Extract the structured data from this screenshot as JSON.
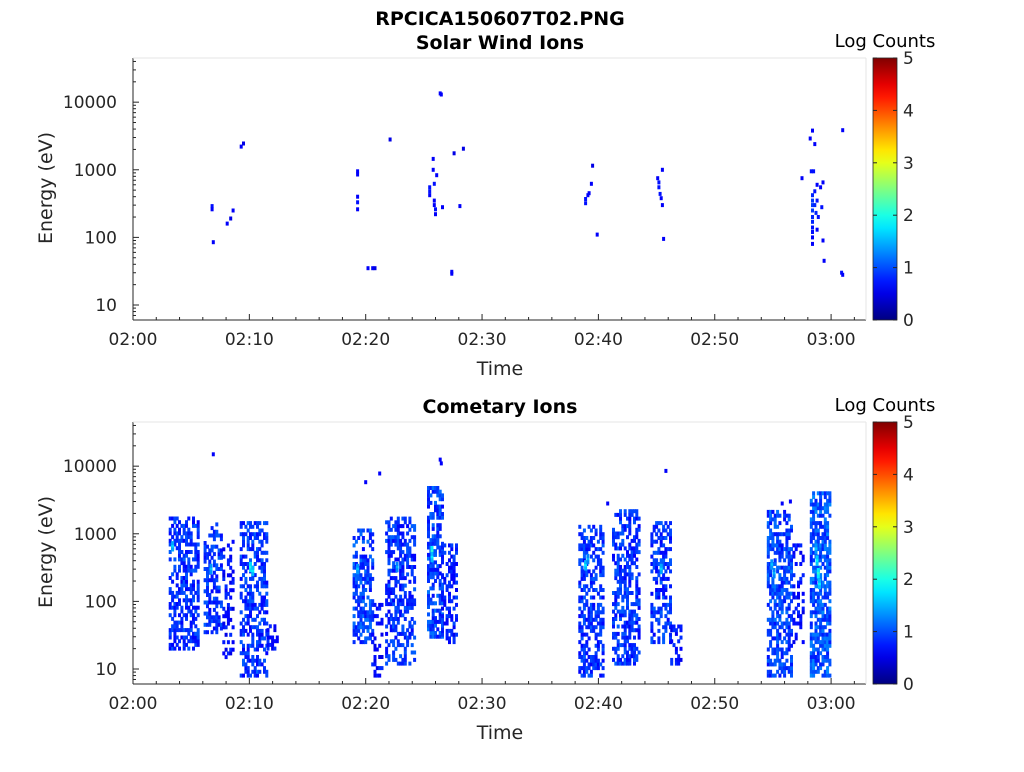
{
  "figure": {
    "title": "RPCICA150607T02.PNG"
  },
  "colors": {
    "axis": "#262626",
    "background": "#ffffff",
    "colormap": "jet"
  },
  "chart_data": [
    {
      "type": "heatmap",
      "title": "Solar Wind Ions",
      "xlabel": "Time",
      "ylabel": "Energy (eV)",
      "x_ticks": [
        "02:00",
        "02:10",
        "02:20",
        "02:30",
        "02:40",
        "02:50",
        "03:00"
      ],
      "x_range_minutes": [
        0,
        63
      ],
      "y_scale": "log",
      "y_ticks": [
        "10",
        "100",
        "1000",
        "10000"
      ],
      "ylim": [
        6,
        45000
      ],
      "grid": false,
      "colorbar": {
        "label": "Log Counts",
        "ticks": [
          "0",
          "1",
          "2",
          "3",
          "4",
          "5"
        ],
        "range": [
          0,
          5
        ]
      },
      "points": [
        {
          "t": 6.8,
          "e": 290,
          "c": 0.7
        },
        {
          "t": 6.8,
          "e": 260,
          "c": 0.6
        },
        {
          "t": 6.9,
          "e": 85,
          "c": 0.6
        },
        {
          "t": 8.1,
          "e": 160,
          "c": 0.6
        },
        {
          "t": 8.4,
          "e": 190,
          "c": 0.5
        },
        {
          "t": 8.6,
          "e": 250,
          "c": 0.6
        },
        {
          "t": 9.3,
          "e": 2200,
          "c": 0.6
        },
        {
          "t": 9.5,
          "e": 2450,
          "c": 0.5
        },
        {
          "t": 19.3,
          "e": 950,
          "c": 0.6
        },
        {
          "t": 19.3,
          "e": 850,
          "c": 0.6
        },
        {
          "t": 19.3,
          "e": 400,
          "c": 0.6
        },
        {
          "t": 19.3,
          "e": 330,
          "c": 0.7
        },
        {
          "t": 19.3,
          "e": 260,
          "c": 0.6
        },
        {
          "t": 20.2,
          "e": 35,
          "c": 0.6
        },
        {
          "t": 20.6,
          "e": 35,
          "c": 0.6
        },
        {
          "t": 20.8,
          "e": 35,
          "c": 0.5
        },
        {
          "t": 22.1,
          "e": 2800,
          "c": 0.5
        },
        {
          "t": 25.5,
          "e": 550,
          "c": 0.7
        },
        {
          "t": 25.5,
          "e": 480,
          "c": 0.7
        },
        {
          "t": 25.5,
          "e": 420,
          "c": 0.6
        },
        {
          "t": 25.8,
          "e": 1450,
          "c": 0.6
        },
        {
          "t": 25.8,
          "e": 1000,
          "c": 0.6
        },
        {
          "t": 25.9,
          "e": 620,
          "c": 0.7
        },
        {
          "t": 25.9,
          "e": 350,
          "c": 0.6
        },
        {
          "t": 25.9,
          "e": 300,
          "c": 0.6
        },
        {
          "t": 26.0,
          "e": 260,
          "c": 0.7
        },
        {
          "t": 26.0,
          "e": 220,
          "c": 0.6
        },
        {
          "t": 26.1,
          "e": 830,
          "c": 0.6
        },
        {
          "t": 26.4,
          "e": 13500,
          "c": 0.6
        },
        {
          "t": 26.5,
          "e": 13000,
          "c": 0.6
        },
        {
          "t": 26.6,
          "e": 280,
          "c": 0.6
        },
        {
          "t": 27.4,
          "e": 31,
          "c": 0.6
        },
        {
          "t": 27.4,
          "e": 29,
          "c": 0.6
        },
        {
          "t": 27.6,
          "e": 1750,
          "c": 0.5
        },
        {
          "t": 28.4,
          "e": 2050,
          "c": 0.5
        },
        {
          "t": 28.1,
          "e": 290,
          "c": 0.6
        },
        {
          "t": 38.9,
          "e": 320,
          "c": 0.7
        },
        {
          "t": 38.9,
          "e": 370,
          "c": 0.7
        },
        {
          "t": 39.1,
          "e": 420,
          "c": 0.6
        },
        {
          "t": 39.2,
          "e": 450,
          "c": 0.6
        },
        {
          "t": 39.4,
          "e": 620,
          "c": 0.6
        },
        {
          "t": 39.5,
          "e": 1150,
          "c": 0.5
        },
        {
          "t": 39.9,
          "e": 110,
          "c": 0.6
        },
        {
          "t": 45.1,
          "e": 750,
          "c": 0.6
        },
        {
          "t": 45.2,
          "e": 650,
          "c": 0.7
        },
        {
          "t": 45.2,
          "e": 550,
          "c": 0.7
        },
        {
          "t": 45.3,
          "e": 440,
          "c": 0.7
        },
        {
          "t": 45.4,
          "e": 380,
          "c": 0.6
        },
        {
          "t": 45.5,
          "e": 1000,
          "c": 0.6
        },
        {
          "t": 45.5,
          "e": 300,
          "c": 0.6
        },
        {
          "t": 45.6,
          "e": 95,
          "c": 0.6
        },
        {
          "t": 57.5,
          "e": 750,
          "c": 0.6
        },
        {
          "t": 58.2,
          "e": 2900,
          "c": 0.6
        },
        {
          "t": 58.4,
          "e": 3800,
          "c": 0.6
        },
        {
          "t": 58.6,
          "e": 2400,
          "c": 0.6
        },
        {
          "t": 61.0,
          "e": 3850,
          "c": 0.6
        },
        {
          "t": 58.3,
          "e": 950,
          "c": 0.7
        },
        {
          "t": 58.5,
          "e": 950,
          "c": 0.7
        },
        {
          "t": 58.4,
          "e": 420,
          "c": 0.8
        },
        {
          "t": 58.4,
          "e": 350,
          "c": 0.9
        },
        {
          "t": 58.4,
          "e": 300,
          "c": 0.9
        },
        {
          "t": 58.4,
          "e": 250,
          "c": 0.9
        },
        {
          "t": 58.4,
          "e": 200,
          "c": 0.8
        },
        {
          "t": 58.4,
          "e": 170,
          "c": 0.8
        },
        {
          "t": 58.4,
          "e": 140,
          "c": 0.7
        },
        {
          "t": 58.4,
          "e": 120,
          "c": 0.7
        },
        {
          "t": 58.4,
          "e": 100,
          "c": 0.6
        },
        {
          "t": 58.4,
          "e": 80,
          "c": 0.6
        },
        {
          "t": 58.6,
          "e": 480,
          "c": 0.7
        },
        {
          "t": 58.6,
          "e": 300,
          "c": 0.8
        },
        {
          "t": 58.7,
          "e": 230,
          "c": 0.8
        },
        {
          "t": 58.8,
          "e": 350,
          "c": 0.7
        },
        {
          "t": 58.9,
          "e": 200,
          "c": 0.7
        },
        {
          "t": 58.8,
          "e": 600,
          "c": 0.6
        },
        {
          "t": 59.1,
          "e": 550,
          "c": 0.6
        },
        {
          "t": 59.3,
          "e": 650,
          "c": 0.6
        },
        {
          "t": 59.2,
          "e": 280,
          "c": 0.7
        },
        {
          "t": 59.3,
          "e": 90,
          "c": 0.6
        },
        {
          "t": 59.4,
          "e": 45,
          "c": 0.6
        },
        {
          "t": 58.8,
          "e": 130,
          "c": 0.6
        },
        {
          "t": 60.9,
          "e": 30,
          "c": 0.7
        },
        {
          "t": 61.0,
          "e": 28,
          "c": 0.6
        }
      ]
    },
    {
      "type": "heatmap",
      "title": "Cometary Ions",
      "xlabel": "Time",
      "ylabel": "Energy (eV)",
      "x_ticks": [
        "02:00",
        "02:10",
        "02:20",
        "02:30",
        "02:40",
        "02:50",
        "03:00"
      ],
      "x_range_minutes": [
        0,
        63
      ],
      "y_scale": "log",
      "y_ticks": [
        "10",
        "100",
        "1000",
        "10000"
      ],
      "ylim": [
        6,
        45000
      ],
      "grid": false,
      "colorbar": {
        "label": "Log Counts",
        "ticks": [
          "0",
          "1",
          "2",
          "3",
          "4",
          "5"
        ],
        "range": [
          0,
          5
        ]
      },
      "bursts": [
        {
          "t0": 3.2,
          "t1": 5.8,
          "elow": 20,
          "ehigh": 1900,
          "density": 0.55,
          "c": 1.0
        },
        {
          "t0": 6.2,
          "t1": 7.8,
          "elow": 35,
          "ehigh": 1500,
          "density": 0.5,
          "c": 1.0
        },
        {
          "t0": 7.8,
          "t1": 8.6,
          "elow": 15,
          "ehigh": 800,
          "density": 0.35,
          "c": 0.8
        },
        {
          "t0": 9.3,
          "t1": 11.6,
          "elow": 8,
          "ehigh": 1500,
          "density": 0.5,
          "c": 1.0
        },
        {
          "t0": 11.6,
          "t1": 12.4,
          "elow": 20,
          "ehigh": 45,
          "density": 0.5,
          "c": 0.8
        },
        {
          "t0": 19.0,
          "t1": 20.6,
          "elow": 25,
          "ehigh": 1200,
          "density": 0.55,
          "c": 1.1
        },
        {
          "t0": 20.6,
          "t1": 21.4,
          "elow": 8,
          "ehigh": 90,
          "density": 0.35,
          "c": 0.8
        },
        {
          "t0": 21.8,
          "t1": 24.2,
          "elow": 12,
          "ehigh": 1700,
          "density": 0.5,
          "c": 1.0
        },
        {
          "t0": 25.4,
          "t1": 26.6,
          "elow": 30,
          "ehigh": 4800,
          "density": 0.55,
          "c": 1.1
        },
        {
          "t0": 26.6,
          "t1": 27.8,
          "elow": 25,
          "ehigh": 700,
          "density": 0.4,
          "c": 0.9
        },
        {
          "t0": 38.4,
          "t1": 40.6,
          "elow": 8,
          "ehigh": 1300,
          "density": 0.5,
          "c": 1.0
        },
        {
          "t0": 41.3,
          "t1": 43.6,
          "elow": 12,
          "ehigh": 2200,
          "density": 0.55,
          "c": 1.0
        },
        {
          "t0": 44.6,
          "t1": 46.3,
          "elow": 25,
          "ehigh": 1600,
          "density": 0.5,
          "c": 1.0
        },
        {
          "t0": 46.3,
          "t1": 47.3,
          "elow": 12,
          "ehigh": 45,
          "density": 0.4,
          "c": 0.8
        },
        {
          "t0": 54.6,
          "t1": 56.8,
          "elow": 8,
          "ehigh": 2300,
          "density": 0.6,
          "c": 1.1
        },
        {
          "t0": 56.8,
          "t1": 57.8,
          "elow": 25,
          "ehigh": 700,
          "density": 0.3,
          "c": 0.8
        },
        {
          "t0": 58.3,
          "t1": 60.0,
          "elow": 8,
          "ehigh": 4200,
          "density": 0.65,
          "c": 1.2
        }
      ],
      "hotspots": [
        {
          "t": 3.4,
          "e": 650,
          "c": 1.7
        },
        {
          "t": 6.7,
          "e": 300,
          "c": 1.6
        },
        {
          "t": 10.1,
          "e": 320,
          "c": 2.0
        },
        {
          "t": 10.3,
          "e": 280,
          "c": 1.8
        },
        {
          "t": 19.3,
          "e": 300,
          "c": 1.6
        },
        {
          "t": 22.7,
          "e": 320,
          "c": 1.5
        },
        {
          "t": 25.7,
          "e": 550,
          "c": 2.1
        },
        {
          "t": 25.7,
          "e": 450,
          "c": 1.8
        },
        {
          "t": 38.9,
          "e": 340,
          "c": 1.8
        },
        {
          "t": 39.1,
          "e": 420,
          "c": 1.5
        },
        {
          "t": 45.4,
          "e": 300,
          "c": 1.7
        },
        {
          "t": 54.9,
          "e": 350,
          "c": 1.6
        },
        {
          "t": 55.1,
          "e": 260,
          "c": 1.5
        },
        {
          "t": 58.8,
          "e": 400,
          "c": 1.9
        },
        {
          "t": 58.9,
          "e": 260,
          "c": 2.1
        },
        {
          "t": 59.0,
          "e": 180,
          "c": 1.8
        },
        {
          "t": 58.7,
          "e": 600,
          "c": 1.6
        }
      ],
      "points": [
        {
          "t": 6.9,
          "e": 15000,
          "c": 0.6
        },
        {
          "t": 20.0,
          "e": 5800,
          "c": 0.6
        },
        {
          "t": 21.2,
          "e": 7800,
          "c": 0.6
        },
        {
          "t": 26.4,
          "e": 12500,
          "c": 0.6
        },
        {
          "t": 26.5,
          "e": 11000,
          "c": 0.6
        },
        {
          "t": 40.8,
          "e": 2800,
          "c": 0.6
        },
        {
          "t": 45.8,
          "e": 8500,
          "c": 0.6
        },
        {
          "t": 55.8,
          "e": 2800,
          "c": 0.6
        },
        {
          "t": 56.5,
          "e": 3000,
          "c": 0.6
        }
      ]
    }
  ]
}
